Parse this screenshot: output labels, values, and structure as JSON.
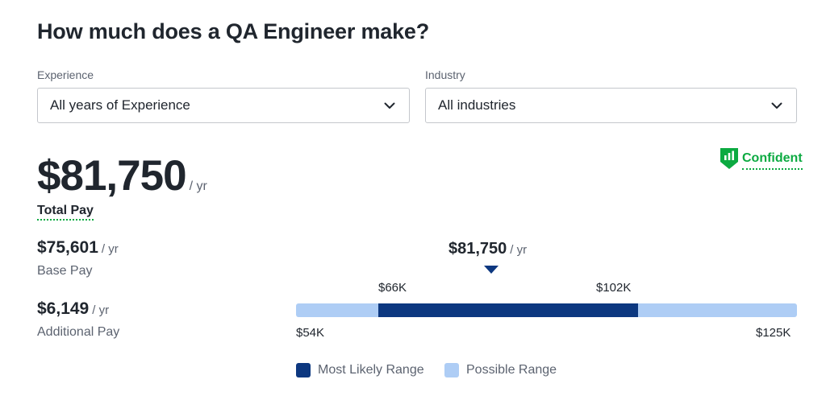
{
  "title": "How much does a QA Engineer make?",
  "filters": {
    "experience": {
      "label": "Experience",
      "value": "All years of Experience"
    },
    "industry": {
      "label": "Industry",
      "value": "All industries"
    }
  },
  "total_pay": {
    "amount": "$81,750",
    "unit": "/ yr",
    "label": "Total Pay"
  },
  "confidence": {
    "label": "Confident",
    "color": "#0caa41",
    "icon": "bar-chart-shield-icon"
  },
  "base_pay": {
    "amount": "$75,601",
    "unit": "/ yr",
    "label": "Base Pay"
  },
  "additional_pay": {
    "amount": "$6,149",
    "unit": "/ yr",
    "label": "Additional Pay"
  },
  "range": {
    "median": {
      "amount": "$81,750",
      "unit": "/ yr",
      "value": 81750
    },
    "most_likely_low": {
      "label": "$66K",
      "value": 66000
    },
    "most_likely_high": {
      "label": "$102K",
      "value": 102000
    },
    "possible_low": {
      "label": "$54K",
      "value": 54000
    },
    "possible_high": {
      "label": "$125K",
      "value": 125000
    },
    "colors": {
      "most_likely": "#0d3880",
      "possible": "#aecdf5"
    }
  },
  "legend": {
    "most_likely": "Most Likely Range",
    "possible": "Possible Range"
  }
}
